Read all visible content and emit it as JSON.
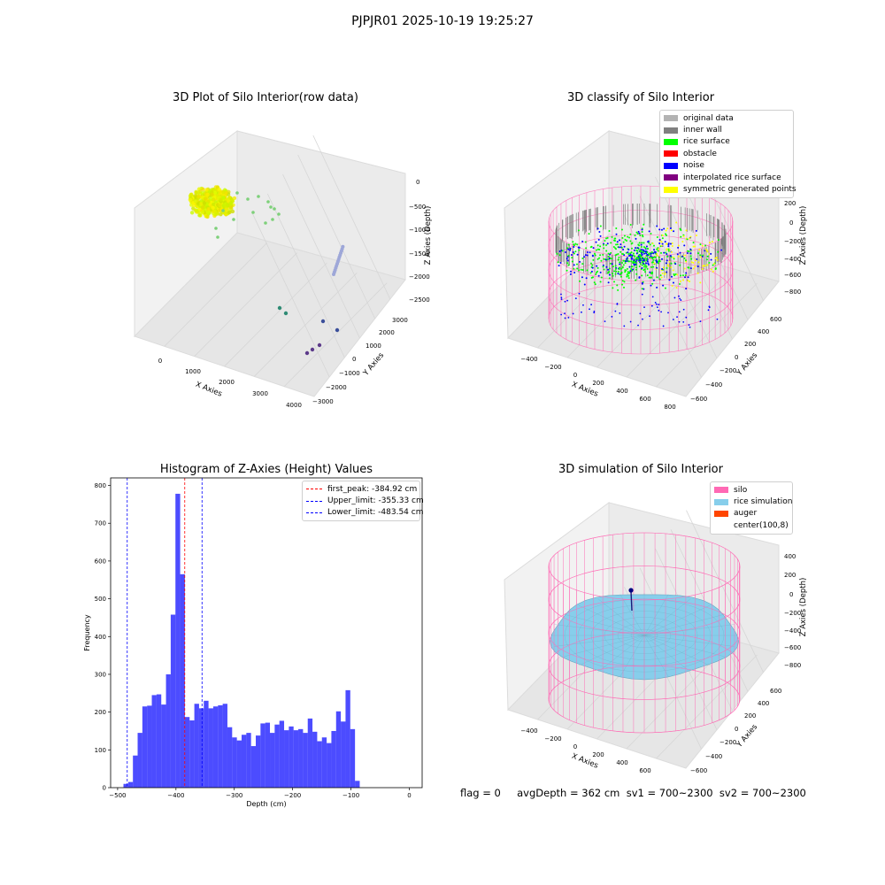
{
  "figure": {
    "suptitle": "PJPJR01 2025-10-19 19:25:27",
    "status_line": "flag = 0     avgDepth = 362 cm  sv1 = 700~2300  sv2 = 700~2300"
  },
  "colors": {
    "original": "#b3b3b3",
    "inner_wall": "#808080",
    "rice_surface": "#00ff00",
    "obstacle": "#ff0000",
    "noise": "#0000ff",
    "interpolated": "#800080",
    "symmetric": "#ffff00",
    "silo": "#ff69b4",
    "rice_sim": "#87ceeb",
    "auger": "#ff4500",
    "hist_bar": "#0000ff"
  },
  "plot1": {
    "title": "3D Plot of Silo Interior(row data)",
    "xlabel": "X Axies",
    "ylabel": "Y Axies",
    "zlabel": "Z Axies (Depth)",
    "xticks": [
      "0",
      "1000",
      "2000",
      "3000",
      "4000"
    ],
    "yticks": [
      "−3000",
      "−2000",
      "−1000",
      "0",
      "1000",
      "2000",
      "3000"
    ],
    "zticks": [
      "0",
      "−500",
      "−1000",
      "−1500",
      "−2000",
      "−2500"
    ]
  },
  "plot2": {
    "title": "3D classify of Silo Interior",
    "xlabel": "X Axies",
    "ylabel": "Y Axies",
    "zlabel": "Z Axies (Depth)",
    "xticks": [
      "−400",
      "−200",
      "0",
      "200",
      "400",
      "600",
      "800"
    ],
    "yticks": [
      "−600",
      "−400",
      "−200",
      "0",
      "200",
      "400",
      "600"
    ],
    "zticks": [
      "200",
      "0",
      "−200",
      "−400",
      "−600",
      "−800"
    ],
    "legend": [
      "original data",
      "inner wall",
      "rice surface",
      "obstacle",
      "noise",
      "interpolated rice surface",
      "symmetric generated points"
    ]
  },
  "plot3": {
    "title": "3D simulation of Silo Interior",
    "xlabel": "X Axies",
    "ylabel": "Y Axies",
    "zlabel": "Z Axies (Depth)",
    "xticks": [
      "−400",
      "−200",
      "0",
      "200",
      "400",
      "600"
    ],
    "yticks": [
      "−600",
      "−400",
      "−200",
      "0",
      "200",
      "400",
      "600"
    ],
    "zticks": [
      "400",
      "200",
      "0",
      "−200",
      "−400",
      "−600",
      "−800"
    ],
    "legend": [
      "silo",
      "rice simulation",
      "auger",
      "center(100,8)"
    ]
  },
  "chart_data": {
    "type": "bar",
    "title": "Histogram of Z-Axies (Height) Values",
    "xlabel": "Depth (cm)",
    "ylabel": "Frequency",
    "xlim": [
      -512,
      22
    ],
    "ylim": [
      0,
      820
    ],
    "xticks": [
      -500,
      -400,
      -300,
      -200,
      -100,
      0
    ],
    "yticks": [
      0,
      100,
      200,
      300,
      400,
      500,
      600,
      700,
      800
    ],
    "bin_start": -490,
    "bin_width": 8.1,
    "values": [
      10,
      15,
      85,
      145,
      215,
      217,
      245,
      247,
      220,
      300,
      458,
      778,
      565,
      187,
      178,
      222,
      210,
      230,
      210,
      215,
      218,
      222,
      160,
      133,
      125,
      140,
      145,
      110,
      138,
      170,
      172,
      145,
      167,
      177,
      152,
      162,
      152,
      155,
      145,
      183,
      148,
      123,
      133,
      118,
      150,
      202,
      175,
      258,
      155,
      18
    ],
    "vlines": [
      {
        "label": "first_peak: -384.92 cm",
        "x": -384.92,
        "color": "#ff0000"
      },
      {
        "label": "Upper_limit: -355.33 cm",
        "x": -355.33,
        "color": "#0000ff"
      },
      {
        "label": "Lower_limit: -483.54 cm",
        "x": -483.54,
        "color": "#0000ff"
      }
    ]
  }
}
